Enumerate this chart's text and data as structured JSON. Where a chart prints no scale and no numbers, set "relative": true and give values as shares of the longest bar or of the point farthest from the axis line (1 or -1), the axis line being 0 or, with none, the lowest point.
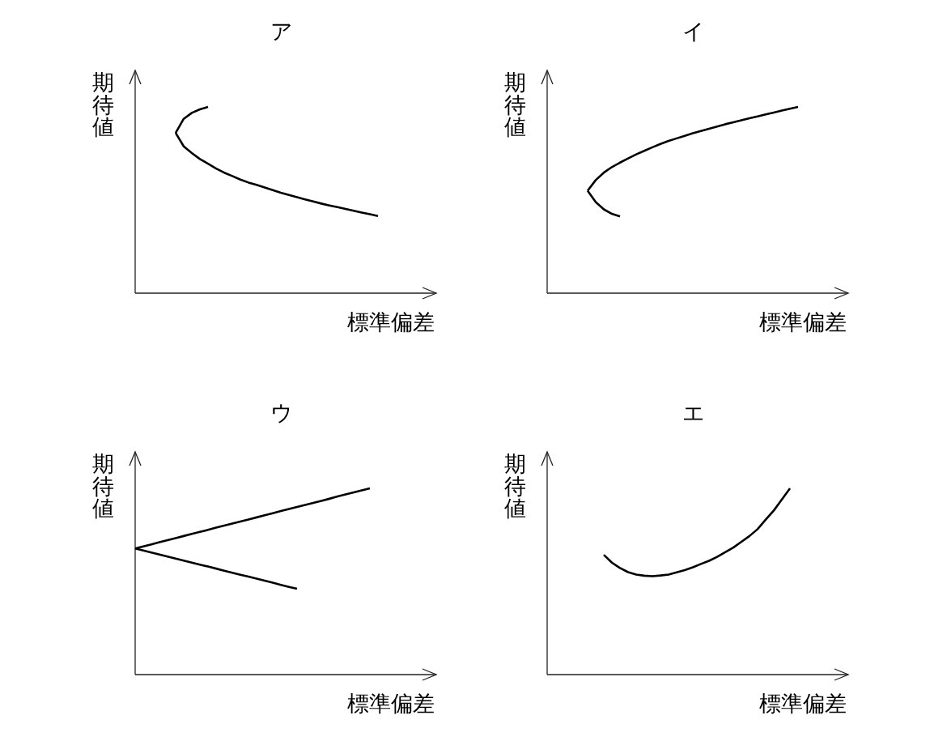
{
  "chart_data": [
    {
      "type": "line",
      "title": "ア",
      "xlabel": "標準偏差",
      "ylabel": "期待値",
      "relative": true,
      "categories": [
        null,
        null,
        null,
        null,
        null,
        null,
        null,
        null,
        null,
        null,
        null,
        null,
        null,
        null,
        null,
        null,
        null,
        null,
        null,
        null,
        null,
        null,
        null,
        null,
        null,
        null,
        null,
        null,
        null,
        null,
        null,
        null,
        null,
        null,
        null,
        null,
        null,
        null
      ],
      "series": [
        {
          "color": "#000000",
          "values": [
            null,
            null,
            null,
            null,
            null,
            0.86,
            0.936,
            0.968,
            0.987,
            1.0,
            null,
            null,
            null,
            null,
            null,
            null,
            null,
            null,
            null,
            null,
            null,
            null,
            null,
            null,
            null,
            null,
            null,
            null,
            null,
            null,
            null,
            null,
            null,
            null,
            null,
            null,
            null,
            null
          ]
        },
        {
          "color": "#000000",
          "values": [
            null,
            null,
            null,
            null,
            null,
            0.86,
            0.788,
            0.752,
            0.72,
            0.695,
            0.669,
            0.647,
            0.629,
            0.61,
            0.594,
            0.581,
            0.567,
            0.553,
            0.539,
            0.527,
            0.515,
            0.503,
            0.492,
            0.481,
            0.471,
            0.462,
            0.452,
            0.442,
            0.433,
            0.424,
            0.414,
            null,
            null,
            null,
            null,
            null,
            null,
            null
          ]
        }
      ]
    },
    {
      "type": "line",
      "title": "イ",
      "xlabel": "標準偏差",
      "ylabel": "期待値",
      "relative": true,
      "categories": [
        null,
        null,
        null,
        null,
        null,
        null,
        null,
        null,
        null,
        null,
        null,
        null,
        null,
        null,
        null,
        null,
        null,
        null,
        null,
        null,
        null,
        null,
        null,
        null,
        null,
        null,
        null,
        null,
        null,
        null,
        null,
        null,
        null,
        null,
        null,
        null,
        null,
        null
      ],
      "series": [
        {
          "color": "#000000",
          "values": [
            null,
            null,
            null,
            null,
            null,
            0.55,
            0.489,
            0.45,
            0.426,
            0.412,
            null,
            null,
            null,
            null,
            null,
            null,
            null,
            null,
            null,
            null,
            null,
            null,
            null,
            null,
            null,
            null,
            null,
            null,
            null,
            null,
            null,
            null,
            null,
            null,
            null,
            null,
            null,
            null
          ]
        },
        {
          "color": "#000000",
          "values": [
            null,
            null,
            null,
            null,
            null,
            0.55,
            0.607,
            0.647,
            0.677,
            0.701,
            0.723,
            0.745,
            0.764,
            0.783,
            0.801,
            0.817,
            0.831,
            0.845,
            0.859,
            0.871,
            0.883,
            0.895,
            0.907,
            0.917,
            0.928,
            0.939,
            0.949,
            0.96,
            0.97,
            0.98,
            0.99,
            1.0,
            null,
            null,
            null,
            null,
            null,
            null
          ]
        }
      ]
    },
    {
      "type": "line",
      "title": "ウ",
      "xlabel": "標準偏差",
      "ylabel": "期待値",
      "relative": true,
      "categories": [
        null,
        null,
        null,
        null,
        null,
        null,
        null,
        null,
        null,
        null,
        null,
        null,
        null,
        null,
        null,
        null,
        null,
        null,
        null,
        null,
        null,
        null,
        null,
        null,
        null,
        null,
        null,
        null,
        null,
        null,
        null,
        null,
        null,
        null,
        null,
        null,
        null,
        null
      ],
      "series": [
        {
          "color": "#000000",
          "values": [
            0.677,
            0.688,
            0.699,
            0.711,
            0.722,
            0.733,
            0.744,
            0.755,
            0.766,
            0.777,
            0.789,
            0.8,
            0.811,
            0.822,
            0.833,
            0.844,
            0.855,
            0.866,
            0.878,
            0.889,
            0.9,
            0.911,
            0.922,
            0.933,
            0.944,
            0.956,
            0.967,
            0.978,
            0.989,
            1.0,
            null,
            null,
            null,
            null,
            null,
            null,
            null,
            null
          ]
        },
        {
          "color": "#000000",
          "values": [
            0.677,
            0.666,
            0.655,
            0.645,
            0.634,
            0.623,
            0.612,
            0.601,
            0.59,
            0.58,
            0.569,
            0.558,
            0.547,
            0.536,
            0.526,
            0.515,
            0.504,
            0.493,
            0.482,
            0.471,
            0.461,
            null,
            null,
            null,
            null,
            null,
            null,
            null,
            null,
            null,
            null,
            null,
            null,
            null,
            null,
            null,
            null,
            null
          ]
        }
      ]
    },
    {
      "type": "line",
      "title": "エ",
      "xlabel": "標準偏差",
      "ylabel": "期待値",
      "relative": true,
      "categories": [
        null,
        null,
        null,
        null,
        null,
        null,
        null,
        null,
        null,
        null,
        null,
        null,
        null,
        null,
        null,
        null,
        null,
        null,
        null,
        null,
        null,
        null,
        null,
        null,
        null,
        null,
        null,
        null,
        null,
        null,
        null,
        null,
        null,
        null,
        null,
        null,
        null,
        null
      ],
      "series": [
        {
          "color": "#000000",
          "values": [
            null,
            null,
            null,
            null,
            null,
            null,
            null,
            0.643,
            0.601,
            0.572,
            0.55,
            0.537,
            0.531,
            0.528,
            0.532,
            0.537,
            0.549,
            0.561,
            0.576,
            0.594,
            0.611,
            0.632,
            0.657,
            0.682,
            0.713,
            0.744,
            0.781,
            0.832,
            0.881,
            0.94,
            1.0,
            null,
            null,
            null,
            null,
            null,
            null,
            null
          ]
        }
      ]
    }
  ]
}
